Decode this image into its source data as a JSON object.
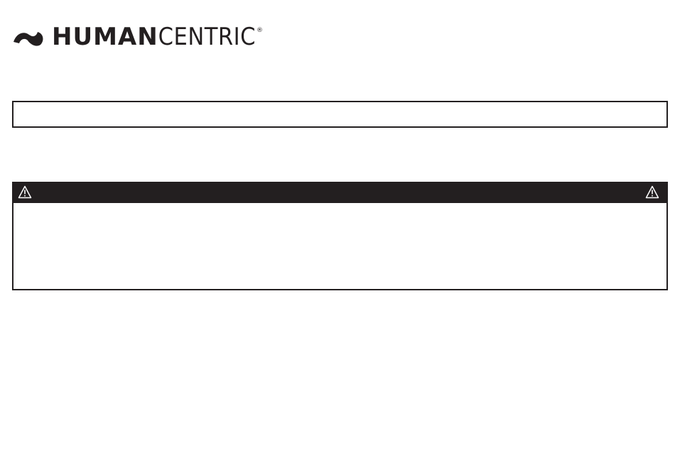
{
  "logo": {
    "brand_bold": "HUMAN",
    "brand_light": "CENTRIC",
    "registered": "®",
    "icon": "swoosh-logo-icon"
  },
  "notice_box": {
    "text": ""
  },
  "warning_box": {
    "icon": "warning-triangle-icon",
    "header_color": "#231f20",
    "body_text": ""
  }
}
